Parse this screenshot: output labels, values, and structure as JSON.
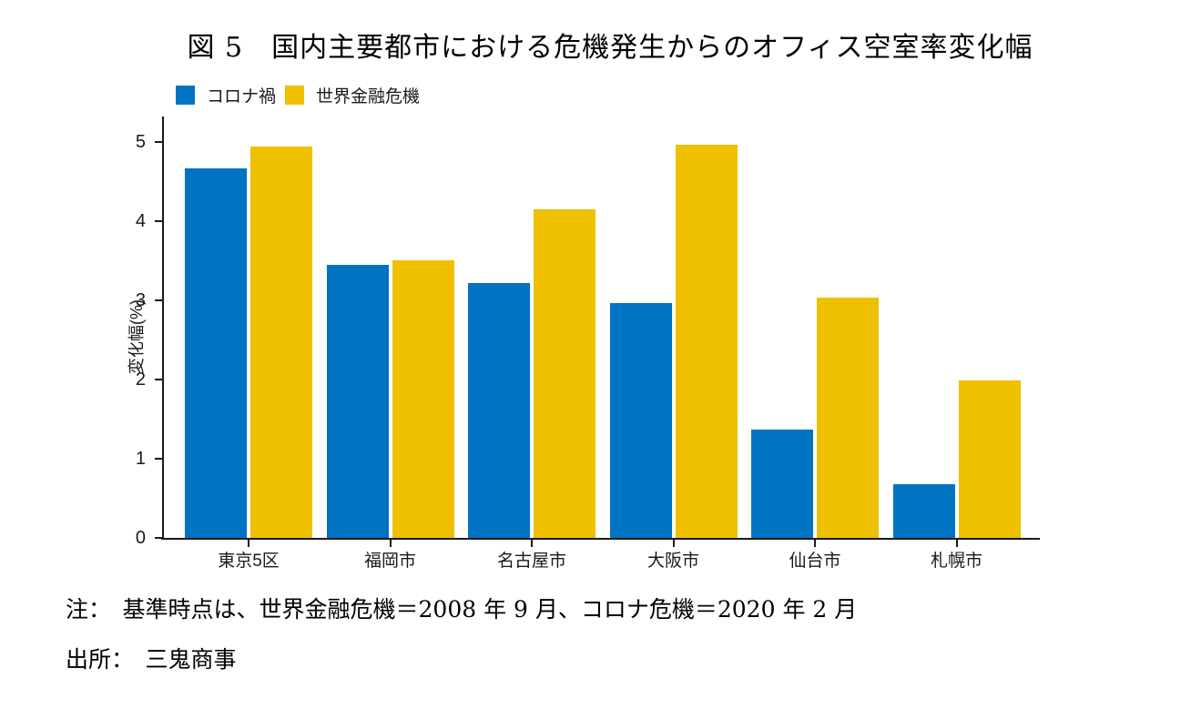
{
  "title": "図 5　国内主要都市における危機発生からのオフィス空室率変化幅",
  "chart_data": {
    "type": "bar",
    "title": "図 5　国内主要都市における危機発生からのオフィス空室率変化幅",
    "xlabel": "",
    "ylabel": "変化幅(%)",
    "categories": [
      "東京5区",
      "福岡市",
      "名古屋市",
      "大阪市",
      "仙台市",
      "札幌市"
    ],
    "series": [
      {
        "name": "コロナ禍",
        "color": "#0073C2",
        "values": [
          4.67,
          3.45,
          3.22,
          2.97,
          1.37,
          0.68
        ]
      },
      {
        "name": "世界金融危機",
        "color": "#EFC000",
        "values": [
          4.94,
          3.51,
          4.15,
          4.96,
          3.04,
          1.99
        ]
      }
    ],
    "ylim": [
      0,
      5.3
    ],
    "yticks": [
      0,
      1,
      2,
      3,
      4,
      5
    ],
    "grid": false,
    "legend_position": "top-left"
  },
  "notes": {
    "note": "注：　基準時点は、世界金融危機＝2008 年 9 月、コロナ危機＝2020 年 2 月",
    "source": "出所：　三鬼商事"
  }
}
